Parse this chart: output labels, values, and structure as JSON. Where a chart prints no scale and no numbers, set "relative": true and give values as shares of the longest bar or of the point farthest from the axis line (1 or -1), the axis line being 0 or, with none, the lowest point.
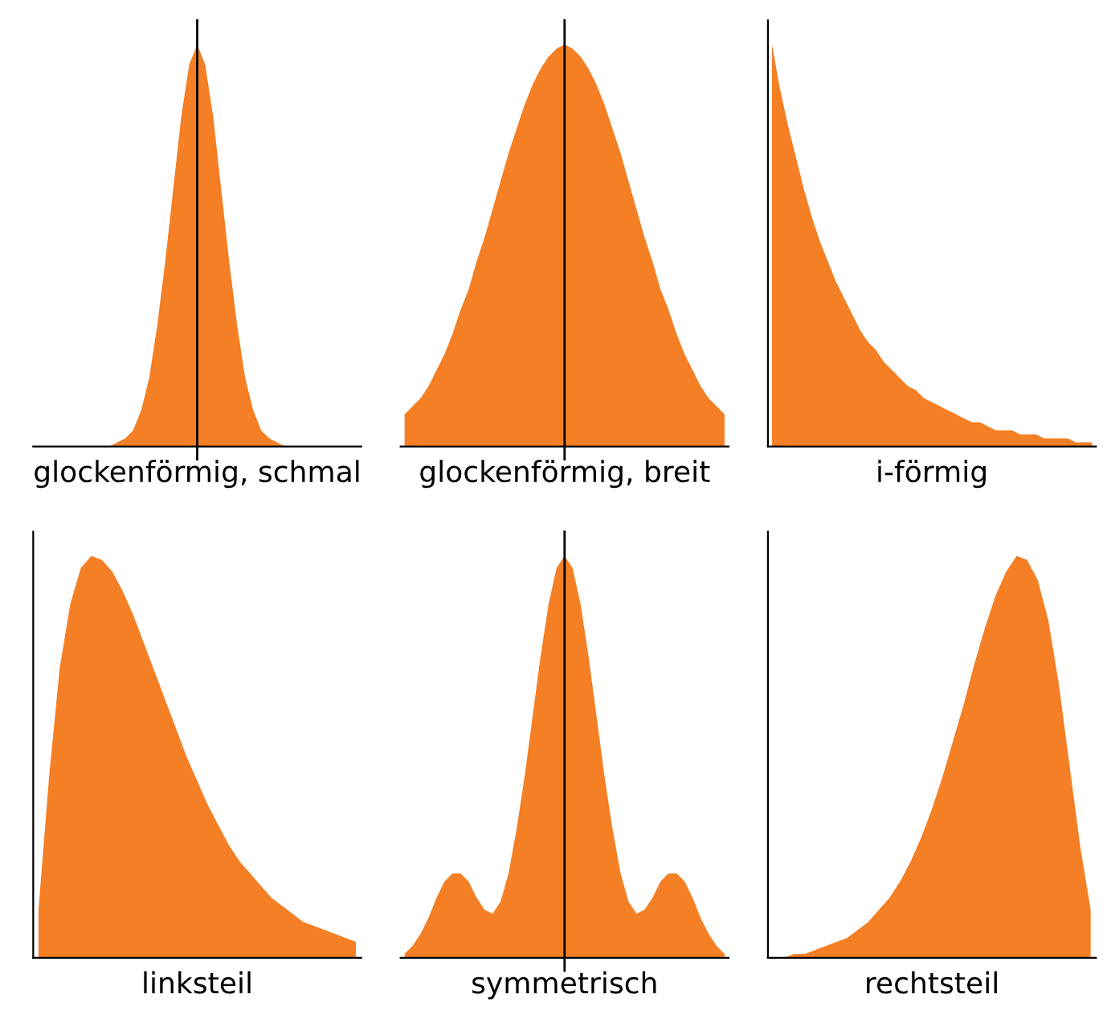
{
  "chart_data": [
    {
      "type": "area",
      "relative": true,
      "xlabel": "glockenförmig, schmal",
      "color": "#f47f24",
      "tick_labels": false,
      "categories": [
        null,
        null,
        null,
        null,
        null,
        null,
        null,
        null,
        null,
        null,
        null,
        null,
        null,
        null,
        null,
        null,
        null,
        null,
        null,
        null,
        null,
        null,
        null,
        null,
        null,
        null,
        null,
        null,
        null,
        null,
        null,
        null,
        null,
        null,
        null,
        null,
        null,
        null,
        null,
        null,
        null
      ],
      "values": [
        0,
        0,
        0,
        0,
        0,
        0,
        0,
        0,
        0,
        0,
        0.01,
        0.02,
        0.04,
        0.09,
        0.17,
        0.3,
        0.46,
        0.64,
        0.82,
        0.95,
        1,
        0.95,
        0.82,
        0.64,
        0.46,
        0.3,
        0.17,
        0.09,
        0.04,
        0.02,
        0.01,
        0,
        0,
        0,
        0,
        0,
        0,
        0,
        0,
        0,
        0
      ]
    },
    {
      "type": "area",
      "relative": true,
      "xlabel": "glockenförmig, breit",
      "color": "#f47f24",
      "tick_labels": false,
      "categories": [
        null,
        null,
        null,
        null,
        null,
        null,
        null,
        null,
        null,
        null,
        null,
        null,
        null,
        null,
        null,
        null,
        null,
        null,
        null,
        null,
        null,
        null,
        null,
        null,
        null,
        null,
        null,
        null,
        null,
        null,
        null,
        null,
        null,
        null,
        null,
        null,
        null,
        null,
        null,
        null,
        null
      ],
      "values": [
        0.08,
        0.1,
        0.12,
        0.15,
        0.19,
        0.23,
        0.28,
        0.34,
        0.39,
        0.46,
        0.52,
        0.59,
        0.66,
        0.73,
        0.79,
        0.85,
        0.9,
        0.94,
        0.97,
        0.99,
        1,
        0.99,
        0.97,
        0.94,
        0.9,
        0.85,
        0.79,
        0.73,
        0.66,
        0.59,
        0.52,
        0.46,
        0.39,
        0.34,
        0.28,
        0.23,
        0.19,
        0.15,
        0.12,
        0.1,
        0.08
      ]
    },
    {
      "type": "area",
      "relative": true,
      "xlabel": "i-förmig",
      "color": "#f47f24",
      "tick_labels": false,
      "categories": [
        null,
        null,
        null,
        null,
        null,
        null,
        null,
        null,
        null,
        null,
        null,
        null,
        null,
        null,
        null,
        null,
        null,
        null,
        null,
        null,
        null,
        null,
        null,
        null,
        null,
        null,
        null,
        null,
        null,
        null,
        null,
        null,
        null,
        null,
        null,
        null,
        null,
        null,
        null,
        null,
        null
      ],
      "values": [
        1,
        0.89,
        0.8,
        0.72,
        0.64,
        0.57,
        0.51,
        0.46,
        0.41,
        0.37,
        0.33,
        0.29,
        0.26,
        0.24,
        0.21,
        0.19,
        0.17,
        0.15,
        0.14,
        0.12,
        0.11,
        0.1,
        0.09,
        0.08,
        0.07,
        0.06,
        0.06,
        0.05,
        0.04,
        0.04,
        0.04,
        0.03,
        0.03,
        0.03,
        0.02,
        0.02,
        0.02,
        0.02,
        0.01,
        0.01,
        0.01
      ]
    },
    {
      "type": "area",
      "relative": true,
      "xlabel": "linksteil",
      "color": "#f47f24",
      "tick_labels": false,
      "categories": [
        null,
        null,
        null,
        null,
        null,
        null,
        null,
        null,
        null,
        null,
        null,
        null,
        null,
        null,
        null,
        null,
        null,
        null,
        null,
        null,
        null,
        null,
        null,
        null,
        null,
        null,
        null,
        null,
        null,
        null,
        null
      ],
      "values": [
        0.12,
        0.45,
        0.72,
        0.88,
        0.97,
        1,
        0.99,
        0.96,
        0.91,
        0.85,
        0.78,
        0.71,
        0.64,
        0.57,
        0.5,
        0.44,
        0.38,
        0.33,
        0.28,
        0.24,
        0.21,
        0.18,
        0.15,
        0.13,
        0.11,
        0.09,
        0.08,
        0.07,
        0.06,
        0.05,
        0.04
      ]
    },
    {
      "type": "area",
      "relative": true,
      "xlabel": "symmetrisch",
      "color": "#f47f24",
      "tick_labels": false,
      "categories": [
        null,
        null,
        null,
        null,
        null,
        null,
        null,
        null,
        null,
        null,
        null,
        null,
        null,
        null,
        null,
        null,
        null,
        null,
        null,
        null,
        null,
        null,
        null,
        null,
        null,
        null,
        null,
        null,
        null,
        null,
        null,
        null,
        null,
        null,
        null,
        null,
        null,
        null,
        null,
        null,
        null
      ],
      "values": [
        0.01,
        0.03,
        0.06,
        0.1,
        0.15,
        0.19,
        0.21,
        0.21,
        0.19,
        0.15,
        0.12,
        0.11,
        0.14,
        0.21,
        0.32,
        0.45,
        0.6,
        0.75,
        0.88,
        0.97,
        1,
        0.97,
        0.88,
        0.75,
        0.6,
        0.45,
        0.32,
        0.21,
        0.14,
        0.11,
        0.12,
        0.15,
        0.19,
        0.21,
        0.21,
        0.19,
        0.15,
        0.1,
        0.06,
        0.03,
        0.01
      ]
    },
    {
      "type": "area",
      "relative": true,
      "xlabel": "rechtsteil",
      "color": "#f47f24",
      "tick_labels": false,
      "categories": [
        null,
        null,
        null,
        null,
        null,
        null,
        null,
        null,
        null,
        null,
        null,
        null,
        null,
        null,
        null,
        null,
        null,
        null,
        null,
        null,
        null,
        null,
        null,
        null,
        null,
        null,
        null,
        null,
        null,
        null,
        null
      ],
      "values": [
        0,
        0,
        0.01,
        0.01,
        0.02,
        0.03,
        0.04,
        0.05,
        0.07,
        0.09,
        0.12,
        0.15,
        0.19,
        0.24,
        0.3,
        0.37,
        0.45,
        0.54,
        0.63,
        0.73,
        0.82,
        0.9,
        0.96,
        1,
        0.99,
        0.94,
        0.84,
        0.68,
        0.48,
        0.28,
        0.12
      ]
    }
  ]
}
